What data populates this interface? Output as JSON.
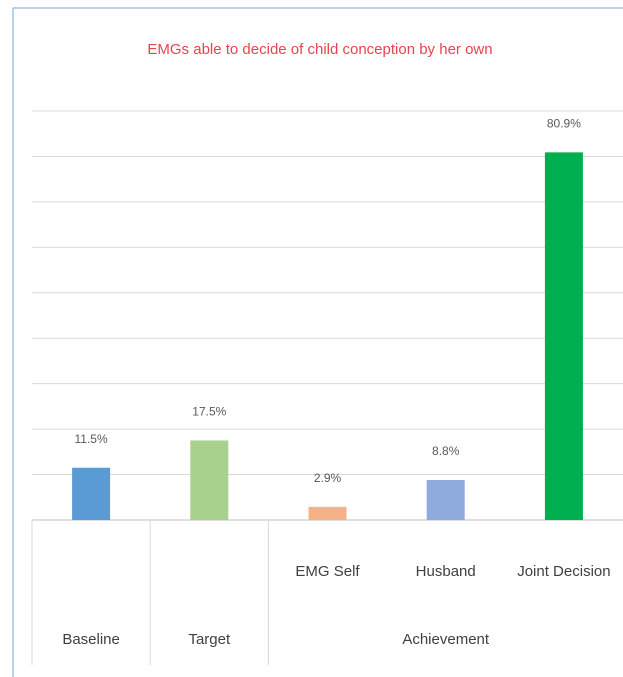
{
  "chart_data": {
    "type": "bar",
    "title": "EMGs able to decide of child conception by her own",
    "groups": [
      {
        "label": "Baseline",
        "categories": [
          null
        ]
      },
      {
        "label": "Target",
        "categories": [
          null
        ]
      },
      {
        "label": "Achievement",
        "categories": [
          "EMG Self",
          "Husband",
          "Joint Decision"
        ]
      }
    ],
    "values": [
      11.5,
      17.5,
      2.9,
      8.8,
      80.9
    ],
    "value_labels": [
      "11.5%",
      "17.5%",
      "2.9%",
      "8.8%",
      "80.9%"
    ],
    "colors": [
      "#5b9bd5",
      "#a9d18e",
      "#f4b183",
      "#8faadc",
      "#00b050"
    ],
    "ylim": [
      0,
      90
    ],
    "yticks": [
      0,
      10,
      20,
      30,
      40,
      50,
      60,
      70,
      80,
      90
    ],
    "grid": true
  }
}
